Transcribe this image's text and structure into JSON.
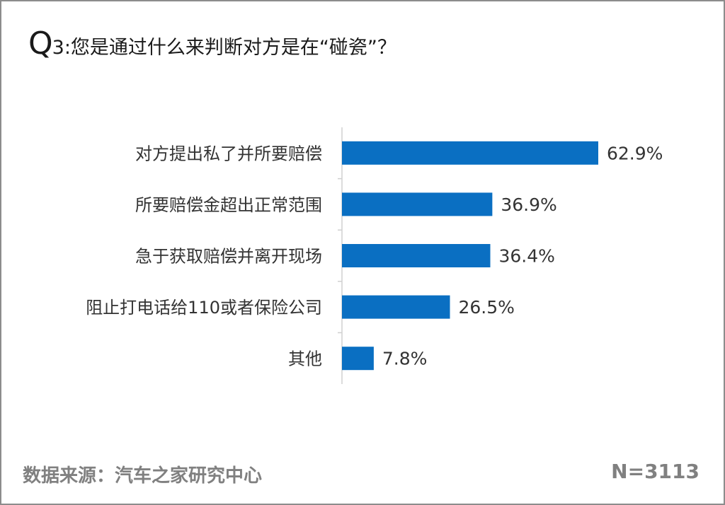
{
  "title": {
    "q": "Q",
    "rest": "3:您是通过什么来判断对方是在“碰瓷”？"
  },
  "footer": {
    "source": "数据来源：汽车之家研究中心",
    "n": "N=3113"
  },
  "colors": {
    "bar": "#0a6fc2",
    "text": "#333333",
    "axis": "#d0d0d0",
    "footer": "#808080"
  },
  "chart_data": {
    "type": "bar",
    "orientation": "horizontal",
    "categories": [
      "对方提出私了并所要赔偿",
      "所要赔偿金超出正常范围",
      "急于获取赔偿并离开现场",
      "阻止打电话给110或者保险公司",
      "其他"
    ],
    "values": [
      62.9,
      36.9,
      36.4,
      26.5,
      7.8
    ],
    "value_labels": [
      "62.9%",
      "36.9%",
      "36.4%",
      "26.5%",
      "7.8%"
    ],
    "unit": "%",
    "xlim": [
      0,
      100
    ],
    "grid": false,
    "legend": "none"
  }
}
